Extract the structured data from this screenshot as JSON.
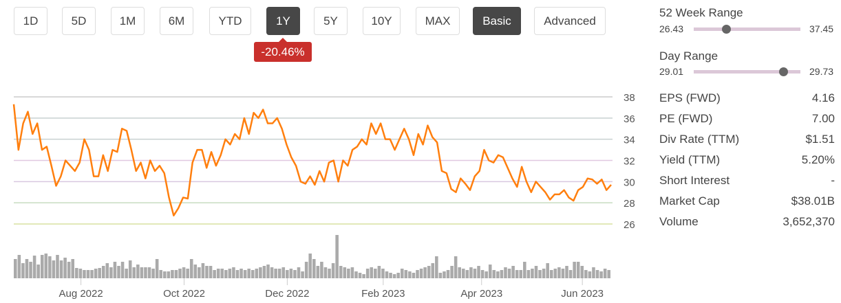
{
  "periods": [
    {
      "label": "1D"
    },
    {
      "label": "5D"
    },
    {
      "label": "1M"
    },
    {
      "label": "6M"
    },
    {
      "label": "YTD"
    },
    {
      "label": "1Y",
      "active": true
    },
    {
      "label": "5Y"
    },
    {
      "label": "10Y"
    },
    {
      "label": "MAX"
    }
  ],
  "modes": [
    {
      "label": "Basic",
      "active": true
    },
    {
      "label": "Advanced"
    }
  ],
  "change_badge": "-20.46%",
  "week52": {
    "label": "52 Week Range",
    "low": "26.43",
    "high": "37.45",
    "current_fraction": 0.3
  },
  "day_range": {
    "label": "Day Range",
    "low": "29.01",
    "high": "29.73",
    "current_fraction": 0.84
  },
  "stats": [
    {
      "label": "EPS (FWD)",
      "value": "4.16"
    },
    {
      "label": "PE (FWD)",
      "value": "7.00"
    },
    {
      "label": "Div Rate (TTM)",
      "value": "$1.51"
    },
    {
      "label": "Yield (TTM)",
      "value": "5.20%"
    },
    {
      "label": "Short Interest",
      "value": "-"
    },
    {
      "label": "Market Cap",
      "value": "$38.01B"
    },
    {
      "label": "Volume",
      "value": "3,652,370"
    }
  ],
  "colors": {
    "line": "#ff7f0e",
    "volume": "#aaaaaa",
    "active": "#474747",
    "badge": "#c9302c"
  },
  "chart_data": {
    "type": "line",
    "ylim": [
      26,
      38
    ],
    "yticks": [
      38,
      36,
      34,
      32,
      30,
      28,
      26
    ],
    "trading_days": 250,
    "xticks": [
      {
        "label": "Aug 2022",
        "day": 28
      },
      {
        "label": "Oct 2022",
        "day": 71
      },
      {
        "label": "Dec 2022",
        "day": 114
      },
      {
        "label": "Feb 2023",
        "day": 154
      },
      {
        "label": "Apr 2023",
        "day": 195
      },
      {
        "label": "Jun 2023",
        "day": 237
      }
    ],
    "price": [
      37.3,
      33,
      35.5,
      36.6,
      34.5,
      35.5,
      33,
      33.3,
      31.5,
      29.6,
      30.5,
      32,
      31.5,
      31,
      31.8,
      34,
      33,
      30.5,
      30.5,
      32.5,
      31,
      33,
      32.8,
      35,
      34.8,
      33,
      31,
      31.8,
      30.3,
      32,
      31,
      31.5,
      30.8,
      28.5,
      26.8,
      27.5,
      28.5,
      28.4,
      31.8,
      33,
      33,
      31.3,
      32.8,
      31.5,
      32.5,
      34,
      33.5,
      34.5,
      34,
      36,
      34.5,
      36.5,
      36,
      36.8,
      35.5,
      35.5,
      36,
      35,
      33.5,
      32.3,
      31.5,
      30,
      29.8,
      30.5,
      29.7,
      31,
      30,
      31.8,
      32,
      30,
      32,
      31.5,
      33,
      33.3,
      34,
      33.5,
      35.5,
      34.5,
      35.5,
      34,
      34,
      33,
      34,
      35,
      34,
      32.5,
      34.5,
      33.5,
      35.3,
      34.2,
      33.7,
      31,
      30.8,
      29.3,
      29,
      30.3,
      29.8,
      29.2,
      30.5,
      31,
      33,
      32,
      31.8,
      32.5,
      32.3,
      31.3,
      30.3,
      29.5,
      31.4,
      30,
      29,
      30,
      29.5,
      29,
      28.3,
      28.8,
      28.8,
      29.2,
      28.5,
      28.2,
      29.2,
      29.5,
      30.3,
      30.2,
      29.8,
      30.2,
      29.2,
      29.7
    ],
    "volume": [
      28,
      34,
      22,
      28,
      24,
      33,
      20,
      34,
      36,
      32,
      26,
      34,
      26,
      30,
      24,
      28,
      15,
      14,
      12,
      12,
      12,
      14,
      15,
      18,
      22,
      16,
      24,
      18,
      24,
      14,
      26,
      16,
      20,
      16,
      16,
      16,
      14,
      28,
      12,
      10,
      10,
      12,
      12,
      14,
      16,
      14,
      28,
      20,
      16,
      22,
      18,
      18,
      12,
      14,
      14,
      12,
      14,
      16,
      12,
      14,
      12,
      14,
      12,
      14,
      16,
      18,
      20,
      16,
      14,
      14,
      16,
      12,
      14,
      12,
      16,
      10,
      24,
      36,
      28,
      18,
      24,
      16,
      14,
      22,
      63,
      18,
      16,
      14,
      16,
      10,
      8,
      6,
      14,
      16,
      14,
      18,
      14,
      10,
      8,
      6,
      8,
      14,
      12,
      10,
      8,
      12,
      14,
      16,
      18,
      22,
      32,
      8,
      10,
      12,
      18,
      32,
      16,
      14,
      12,
      16,
      14,
      18,
      12,
      10,
      20,
      12,
      10,
      12,
      16,
      14,
      18,
      12,
      12,
      24,
      12,
      14,
      18,
      12,
      14,
      22,
      12,
      14,
      16,
      14,
      18,
      12,
      24,
      24,
      18,
      12,
      10,
      16,
      12,
      10,
      14,
      12
    ]
  }
}
